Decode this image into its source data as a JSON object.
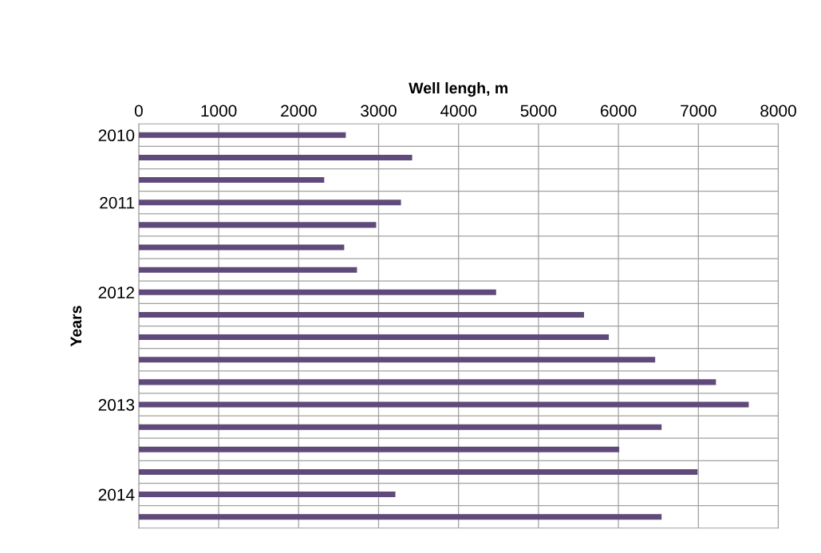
{
  "chart_data": {
    "type": "bar",
    "orientation": "horizontal",
    "xlabel": "Well lengh, m",
    "ylabel": "Years",
    "categories": [
      "2010",
      null,
      null,
      "2011",
      null,
      null,
      null,
      "2012",
      null,
      null,
      null,
      null,
      "2013",
      null,
      null,
      null,
      "2014",
      null
    ],
    "values": [
      2590,
      3420,
      2320,
      3280,
      2970,
      2570,
      2730,
      4470,
      5570,
      5880,
      6460,
      7220,
      7630,
      6540,
      6010,
      6990,
      3210,
      6540
    ],
    "color": "#604a7b",
    "xlim": [
      0,
      8000
    ],
    "xticks": [
      0,
      1000,
      2000,
      3000,
      4000,
      5000,
      6000,
      7000,
      8000
    ],
    "grid": true,
    "legend": false
  }
}
